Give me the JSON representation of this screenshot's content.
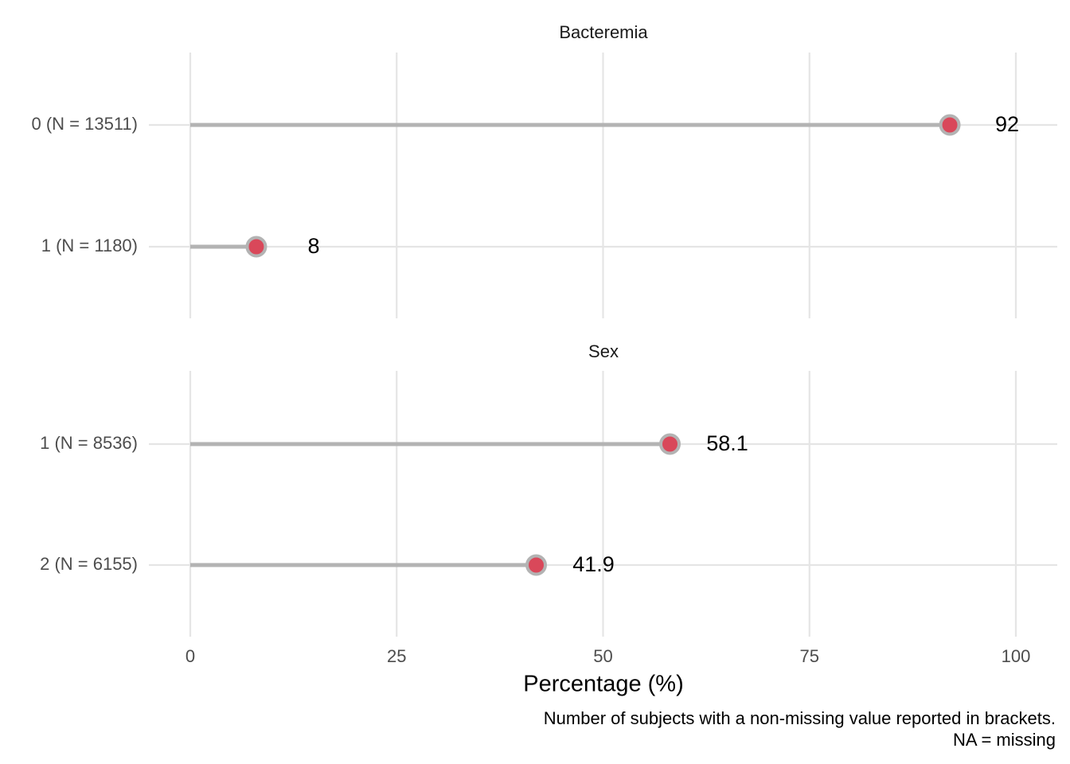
{
  "chart_data": {
    "type": "lollipop",
    "xlabel": "Percentage (%)",
    "xlim": [
      0,
      100
    ],
    "xticks": [
      0,
      25,
      50,
      75,
      100
    ],
    "grid": true,
    "caption": [
      "Number of subjects with a non-missing value reported in brackets.",
      "NA = missing"
    ],
    "panels": [
      {
        "title": "Bacteremia",
        "categories": [
          "0 (N = 13511)",
          "1 (N = 1180)"
        ],
        "values": [
          92,
          8
        ],
        "value_labels": [
          "92",
          "8"
        ]
      },
      {
        "title": "Sex",
        "categories": [
          "1 (N = 8536)",
          "2 (N = 6155)"
        ],
        "values": [
          58.1,
          41.9
        ],
        "value_labels": [
          "58.1",
          "41.9"
        ]
      }
    ],
    "colors": {
      "point_fill": "#d9485a",
      "point_stroke": "#b3b3b3",
      "segment": "#b3b3b3",
      "grid": "#e5e5e5"
    }
  }
}
